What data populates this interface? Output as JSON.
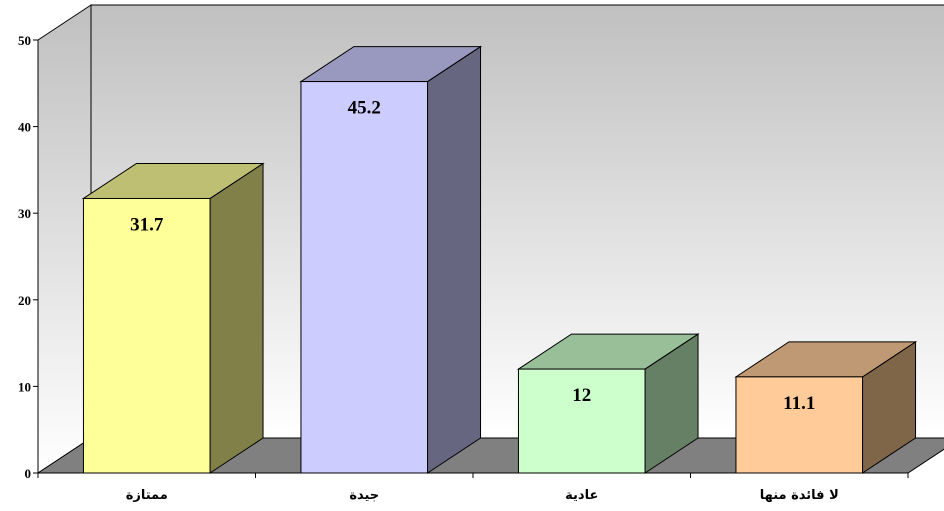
{
  "chart_data": {
    "type": "bar",
    "categories": [
      "ممتازة",
      "جيدة",
      "عادية",
      "لا فائدة منها"
    ],
    "values": [
      31.7,
      45.2,
      12,
      11.1
    ],
    "data_labels": [
      "31.7",
      "45.2",
      "12",
      "11.1"
    ],
    "y_ticks": [
      0,
      10,
      20,
      30,
      40,
      50
    ],
    "ylim": [
      0,
      50
    ],
    "title": "",
    "xlabel": "",
    "ylabel": "",
    "grid": false,
    "legend": "none",
    "three_d": true,
    "colors": {
      "front": [
        "#FFFF99",
        "#CCCCFF",
        "#CCFFCC",
        "#FFCC99"
      ],
      "top": [
        "#BFBF73",
        "#9999BF",
        "#99BF99",
        "#BF9973"
      ],
      "side": [
        "#808048",
        "#666680",
        "#668066",
        "#806648"
      ],
      "floor": "#808080",
      "wall_top": "#C0C0C0",
      "wall_bottom": "#FFFFFF"
    }
  }
}
